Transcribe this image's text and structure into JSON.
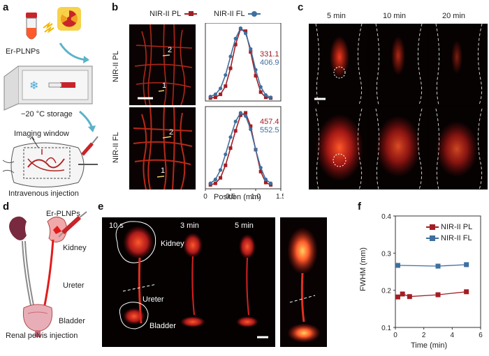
{
  "panels": {
    "a": {
      "label": "a",
      "er_plnps": "Er-PLNPs",
      "storage": "−20 °C storage",
      "imaging_window": "Imaging window",
      "injection": "Intravenous injection"
    },
    "b": {
      "label": "b",
      "legend_pl": "NIR-II PL",
      "legend_fl": "NIR-II FL",
      "row_pl": "NIR-II PL",
      "row_fl": "NIR-II FL",
      "marker_1": "1",
      "marker_2": "2",
      "top_pl_value": "331.1",
      "top_fl_value": "406.9",
      "bottom_pl_value": "457.4",
      "bottom_fl_value": "552.5",
      "x_axis_label": "Position (mm)"
    },
    "c": {
      "label": "c",
      "times": [
        "5 min",
        "10 min",
        "20 min"
      ]
    },
    "d": {
      "label": "d",
      "er_plnps": "Er-PLNPs",
      "kidney": "Kidney",
      "ureter": "Ureter",
      "bladder": "Bladder",
      "caption": "Renal pelvis injection"
    },
    "e": {
      "label": "e",
      "times": [
        "10 s",
        "3 min",
        "5 min"
      ],
      "kidney": "Kidney",
      "ureter": "Ureter",
      "bladder": "Bladder"
    },
    "f": {
      "label": "f",
      "legend_pl": "NIR-II PL",
      "legend_fl": "NIR-II FL",
      "ylabel": "FWHM (mm)",
      "xlabel": "Time (min)"
    }
  },
  "colors": {
    "pl": "#a31d24",
    "fl": "#3e6f9e",
    "glow": "#ff3a1a",
    "image_bg": "#0b0303"
  },
  "chart_data": [
    {
      "id": "b-top",
      "type": "line",
      "title": "",
      "xlabel": "",
      "ylabel": "",
      "xlim": [
        0,
        1.5
      ],
      "ylim": [
        0,
        1.05
      ],
      "series": [
        {
          "name": "NIR-II PL",
          "x": [
            0.1,
            0.2,
            0.3,
            0.4,
            0.5,
            0.6,
            0.7,
            0.8,
            0.9,
            1.0,
            1.1,
            1.2,
            1.3
          ],
          "y": [
            0.04,
            0.05,
            0.09,
            0.2,
            0.44,
            0.76,
            0.97,
            0.94,
            0.66,
            0.34,
            0.12,
            0.05,
            0.04
          ]
        },
        {
          "name": "NIR-II FL",
          "x": [
            0.1,
            0.2,
            0.3,
            0.4,
            0.5,
            0.6,
            0.7,
            0.8,
            0.9,
            1.0,
            1.1,
            1.2,
            1.3
          ],
          "y": [
            0.06,
            0.09,
            0.17,
            0.35,
            0.6,
            0.84,
            0.98,
            0.91,
            0.7,
            0.42,
            0.19,
            0.08,
            0.05
          ]
        }
      ],
      "annotations": [
        "331.1",
        "406.9"
      ]
    },
    {
      "id": "b-bottom",
      "type": "line",
      "title": "",
      "xlabel": "Position (mm)",
      "ylabel": "",
      "xlim": [
        0,
        1.5
      ],
      "ylim": [
        0,
        1.05
      ],
      "xticks": [
        "0",
        "0.5",
        "1.0",
        "1.5"
      ],
      "series": [
        {
          "name": "NIR-II PL",
          "x": [
            0.1,
            0.2,
            0.3,
            0.4,
            0.5,
            0.6,
            0.7,
            0.8,
            0.9,
            1.0,
            1.1,
            1.2,
            1.3
          ],
          "y": [
            0.05,
            0.07,
            0.14,
            0.3,
            0.52,
            0.74,
            0.94,
            0.97,
            0.8,
            0.5,
            0.22,
            0.08,
            0.05
          ]
        },
        {
          "name": "NIR-II FL",
          "x": [
            0.1,
            0.2,
            0.3,
            0.4,
            0.5,
            0.6,
            0.7,
            0.8,
            0.9,
            1.0,
            1.1,
            1.2,
            1.3
          ],
          "y": [
            0.07,
            0.12,
            0.24,
            0.44,
            0.66,
            0.86,
            0.97,
            0.93,
            0.76,
            0.5,
            0.27,
            0.12,
            0.07
          ]
        }
      ],
      "annotations": [
        "457.4",
        "552.5"
      ]
    },
    {
      "id": "f",
      "type": "line",
      "title": "",
      "xlabel": "Time (min)",
      "ylabel": "FWHM (mm)",
      "xlim": [
        0,
        6
      ],
      "ylim": [
        0.1,
        0.4
      ],
      "xticks": [
        "0",
        "2",
        "4",
        "6"
      ],
      "yticks": [
        "0.1",
        "0.2",
        "0.3",
        "0.4"
      ],
      "series": [
        {
          "name": "NIR-II PL",
          "x": [
            0.17,
            0.5,
            1,
            3,
            5
          ],
          "y": [
            0.182,
            0.19,
            0.183,
            0.188,
            0.196
          ]
        },
        {
          "name": "NIR-II FL",
          "x": [
            0.17,
            3,
            5
          ],
          "y": [
            0.267,
            0.265,
            0.269
          ]
        }
      ]
    }
  ]
}
